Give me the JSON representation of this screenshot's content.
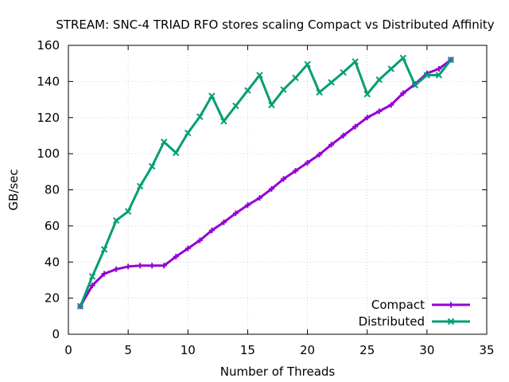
{
  "chart_data": {
    "type": "line",
    "title": "STREAM: SNC-4 TRIAD RFO stores scaling Compact vs Distributed Affinity",
    "xlabel": "Number of Threads",
    "ylabel": "GB/sec",
    "xlim": [
      0,
      35
    ],
    "ylim": [
      0,
      160
    ],
    "xticks": [
      0,
      5,
      10,
      15,
      20,
      25,
      30,
      35
    ],
    "yticks": [
      0,
      20,
      40,
      60,
      80,
      100,
      120,
      140,
      160
    ],
    "grid": true,
    "legend_position": "bottom-right",
    "series": [
      {
        "name": "Compact",
        "color": "#9400d3",
        "marker": "plus",
        "x": [
          1,
          2,
          3,
          4,
          5,
          6,
          7,
          8,
          9,
          10,
          11,
          12,
          13,
          14,
          15,
          16,
          17,
          18,
          19,
          20,
          21,
          22,
          23,
          24,
          25,
          26,
          27,
          28,
          29,
          30,
          31,
          32
        ],
        "y": [
          15.5,
          27,
          33.5,
          36,
          37.5,
          38,
          38,
          38,
          43,
          47.5,
          52,
          57.5,
          62,
          67,
          71.5,
          75.5,
          80.5,
          86,
          90.5,
          95,
          99.5,
          105,
          110,
          115,
          120,
          123.5,
          127,
          133.5,
          138.5,
          144.5,
          147,
          152
        ]
      },
      {
        "name": "Distributed",
        "color": "#009e73",
        "marker": "cross",
        "x": [
          1,
          2,
          3,
          4,
          5,
          6,
          7,
          8,
          9,
          10,
          11,
          12,
          13,
          14,
          15,
          16,
          17,
          18,
          19,
          20,
          21,
          22,
          23,
          24,
          25,
          26,
          27,
          28,
          29,
          30,
          31,
          32
        ],
        "y": [
          15.5,
          32,
          47,
          63,
          68,
          82,
          93,
          106.5,
          100.5,
          111.5,
          120.5,
          132,
          118,
          126.5,
          135,
          143.5,
          127,
          135.5,
          142,
          149.5,
          134,
          139.5,
          145,
          151,
          133,
          141,
          147,
          153,
          138,
          143.5,
          143.5,
          152
        ]
      }
    ]
  }
}
